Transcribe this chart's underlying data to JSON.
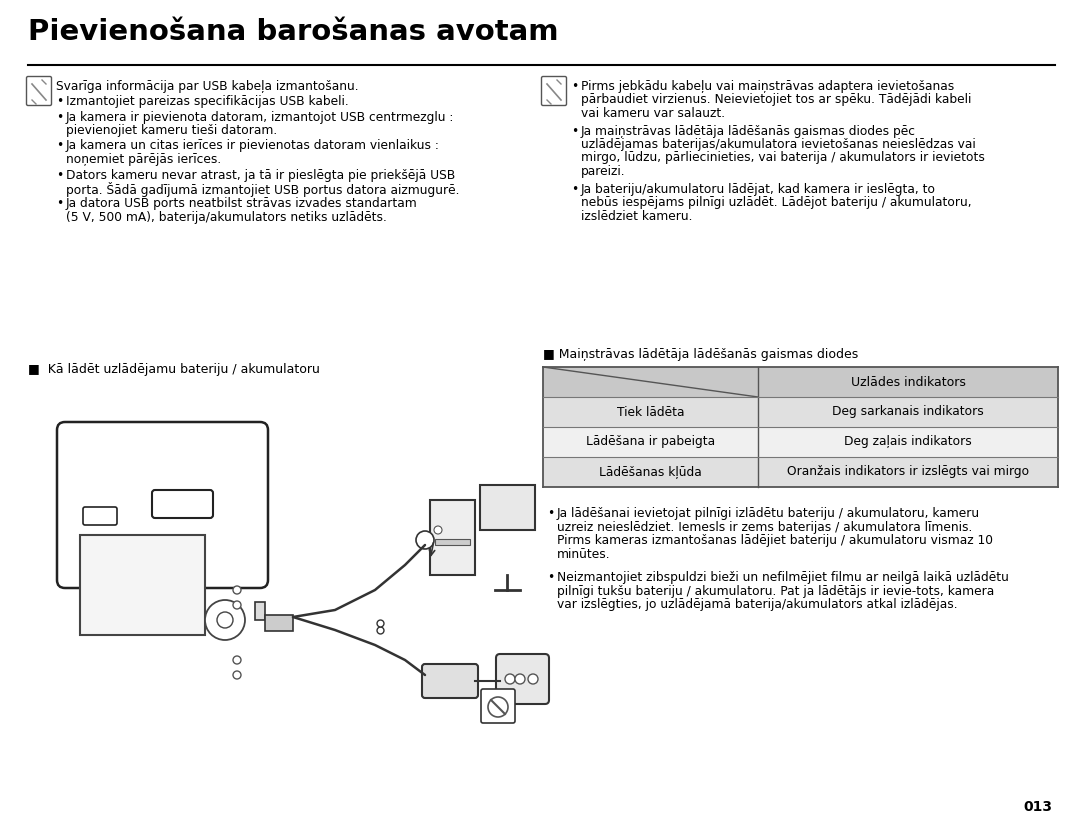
{
  "title": "Pievienošana barošanas avotam",
  "bg_color": "#ffffff",
  "text_color": "#000000",
  "page_number": "013",
  "left_note_header": "Svarīga informācija par USB kabeļa izmantošanu.",
  "left_bullets": [
    "Izmantojiet pareizas specifikācijas USB kabeli.",
    "Ja kamera ir pievienota datoram, izmantojot USB centrmezglu :\n    pievienojiet kameru tieši datoram.",
    "Ja kamera un citas ierīces ir pievienotas datoram vienlaikus :\n    noņemiet pārējās ierīces.",
    "Dators kameru nevar atrast, ja tā ir pieslēgta pie priekšējā USB\n    porta. Šādā gadījumā izmantojiet USB portus datora aizmugurē.",
    "Ja datora USB ports neatbilst strāvas izvades standartam\n    (5 V, 500 mA), baterija/akumulators netiks uzlādēts."
  ],
  "right_note_bullets": [
    "Pirms jebkādu kabeļu vai maiņstrāvas adaptera ievietošanas\n  pārbaudiet virzienus. Neievietojiet tos ar spēku. Tādējādi kabeli\n  vai kameru var salauzt.",
    "Ja maiņstrāvas lādētāja lādēšanās gaismas diodes pēc\n  uzlādējamas baterijas/akumulatora ievietošanas neieslēdzas vai\n  mirgo, lūdzu, pārliecinieties, vai baterija / akumulators ir ievietots\n  pareizi.",
    "Ja bateriju/akumulatoru lādējat, kad kamera ir ieslēgta, to\n  nebūs iespējams pilnīgi uzlādēt. Lādējot bateriju / akumulatoru,\n  izslēdziet kameru."
  ],
  "section2_title": "Kā lādēt uzlādējamu bateriju / akumulatoru",
  "table_section_label": "■ Maiņstrāvas lādētāja lādēšanās gaismas diodes",
  "table_header_col2": "Uzlādes indikators",
  "table_rows": [
    [
      "Tiek lādēta",
      "Deg sarkanais indikators"
    ],
    [
      "Lādēšana ir pabeigta",
      "Deg zaļais indikators"
    ],
    [
      "Lādēšanas kļūda",
      "Oranžais indikators ir izslēgts vai mirgo"
    ]
  ],
  "table_bg_header": "#c8c8c8",
  "table_bg_row_odd": "#e0e0e0",
  "table_bg_row_even": "#f0f0f0",
  "bottom_bullets_right": [
    "Ja lādēšanai ievietojat pilnīgi izlādētu bateriju / akumulatoru, kameru\n  uzreiz neieslēdziet. Iemesls ir zems baterijas / akumulatora līmenis.\n  Pirms kameras izmantošanas lādējiet bateriju / akumulatoru vismaz 10\n  minūtes.",
    "Neizmantojiet zibspuldzi bieži un nefilmējiet filmu ar neilgā laikā uzlādētu\n  pilnīgi tukšu bateriju / akumulatoru. Pat ja lādētājs ir ievie-tots, kamera\n  var izslēgties, jo uzlādējamā baterija/akumulators atkal izlādējas."
  ]
}
